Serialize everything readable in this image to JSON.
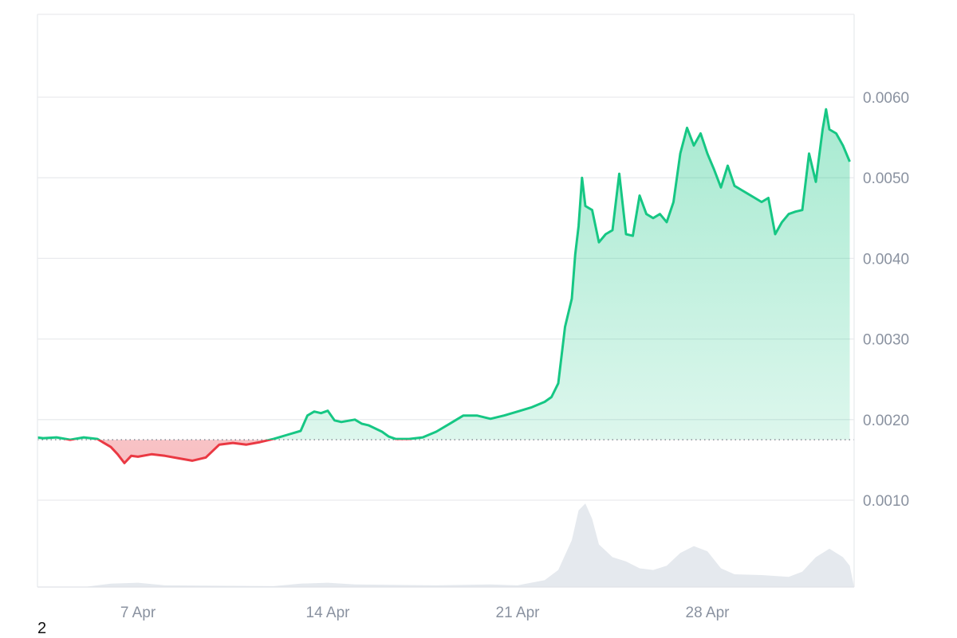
{
  "chart_data": {
    "type": "area",
    "ylim": [
      0,
      0.007
    ],
    "x_range": [
      "2024-04-02",
      "2024-05-05"
    ],
    "baseline": 0.00175,
    "grid": true,
    "colors": {
      "up_line": "#16c784",
      "down_line": "#ea3943",
      "up_fill": "#16c784",
      "down_fill": "#ea3943",
      "volume": "#e5e9ee",
      "grid": "#e9ebee",
      "baseline": "#7e8590"
    },
    "x_ticks": [
      {
        "label": "7 Apr",
        "x": "2024-04-07"
      },
      {
        "label": "14 Apr",
        "x": "2024-04-14"
      },
      {
        "label": "21 Apr",
        "x": "2024-04-21"
      },
      {
        "label": "28 Apr",
        "x": "2024-04-28"
      }
    ],
    "y_ticks": [
      {
        "label": "0.0010",
        "value": 0.001
      },
      {
        "label": "0.0020",
        "value": 0.002
      },
      {
        "label": "0.0030",
        "value": 0.003
      },
      {
        "label": "0.0040",
        "value": 0.004
      },
      {
        "label": "0.0050",
        "value": 0.005
      },
      {
        "label": "0.0060",
        "value": 0.006
      }
    ],
    "series": [
      {
        "points": [
          [
            "2024-04-02",
            0.00172
          ],
          [
            "2024-04-02 12:00",
            0.00178
          ],
          [
            "2024-04-03",
            0.00179
          ],
          [
            "2024-04-03 12:00",
            0.00177
          ],
          [
            "2024-04-04",
            0.00178
          ],
          [
            "2024-04-04 12:00",
            0.00175
          ],
          [
            "2024-04-05",
            0.00178
          ],
          [
            "2024-04-05 12:00",
            0.00176
          ],
          [
            "2024-04-06",
            0.00166
          ],
          [
            "2024-04-06 06:00",
            0.00157
          ],
          [
            "2024-04-06 12:00",
            0.00146
          ],
          [
            "2024-04-06 18:00",
            0.00155
          ],
          [
            "2024-04-07",
            0.00154
          ],
          [
            "2024-04-07 12:00",
            0.00157
          ],
          [
            "2024-04-08",
            0.00155
          ],
          [
            "2024-04-08 12:00",
            0.00152
          ],
          [
            "2024-04-09",
            0.00149
          ],
          [
            "2024-04-09 12:00",
            0.00153
          ],
          [
            "2024-04-10",
            0.00169
          ],
          [
            "2024-04-10 12:00",
            0.00171
          ],
          [
            "2024-04-11",
            0.00169
          ],
          [
            "2024-04-11 12:00",
            0.00172
          ],
          [
            "2024-04-12",
            0.00176
          ],
          [
            "2024-04-12 12:00",
            0.00181
          ],
          [
            "2024-04-13",
            0.00186
          ],
          [
            "2024-04-13 06:00",
            0.00205
          ],
          [
            "2024-04-13 12:00",
            0.0021
          ],
          [
            "2024-04-13 18:00",
            0.00208
          ],
          [
            "2024-04-14",
            0.00211
          ],
          [
            "2024-04-14 06:00",
            0.00199
          ],
          [
            "2024-04-14 12:00",
            0.00197
          ],
          [
            "2024-04-15",
            0.002
          ],
          [
            "2024-04-15 06:00",
            0.00195
          ],
          [
            "2024-04-15 12:00",
            0.00193
          ],
          [
            "2024-04-16",
            0.00185
          ],
          [
            "2024-04-16 06:00",
            0.00179
          ],
          [
            "2024-04-16 12:00",
            0.00176
          ],
          [
            "2024-04-17",
            0.00176
          ],
          [
            "2024-04-17 12:00",
            0.00178
          ],
          [
            "2024-04-18",
            0.00185
          ],
          [
            "2024-04-18 12:00",
            0.00195
          ],
          [
            "2024-04-19",
            0.00205
          ],
          [
            "2024-04-19 12:00",
            0.00205
          ],
          [
            "2024-04-20",
            0.00201
          ],
          [
            "2024-04-20 12:00",
            0.00205
          ],
          [
            "2024-04-21",
            0.0021
          ],
          [
            "2024-04-21 12:00",
            0.00215
          ],
          [
            "2024-04-22",
            0.00222
          ],
          [
            "2024-04-22 06:00",
            0.00228
          ],
          [
            "2024-04-22 12:00",
            0.00245
          ],
          [
            "2024-04-22 18:00",
            0.00315
          ],
          [
            "2024-04-23",
            0.0035
          ],
          [
            "2024-04-23 03:00",
            0.00405
          ],
          [
            "2024-04-23 06:00",
            0.0044
          ],
          [
            "2024-04-23 09:00",
            0.005
          ],
          [
            "2024-04-23 12:00",
            0.00465
          ],
          [
            "2024-04-23 18:00",
            0.0046
          ],
          [
            "2024-04-24",
            0.0042
          ],
          [
            "2024-04-24 06:00",
            0.0043
          ],
          [
            "2024-04-24 12:00",
            0.00435
          ],
          [
            "2024-04-24 18:00",
            0.00505
          ],
          [
            "2024-04-25",
            0.0043
          ],
          [
            "2024-04-25 06:00",
            0.00428
          ],
          [
            "2024-04-25 12:00",
            0.00478
          ],
          [
            "2024-04-25 18:00",
            0.00455
          ],
          [
            "2024-04-26",
            0.0045
          ],
          [
            "2024-04-26 06:00",
            0.00455
          ],
          [
            "2024-04-26 12:00",
            0.00445
          ],
          [
            "2024-04-26 18:00",
            0.0047
          ],
          [
            "2024-04-27",
            0.0053
          ],
          [
            "2024-04-27 06:00",
            0.00562
          ],
          [
            "2024-04-27 12:00",
            0.0054
          ],
          [
            "2024-04-27 18:00",
            0.00555
          ],
          [
            "2024-04-28",
            0.0053
          ],
          [
            "2024-04-28 06:00",
            0.0051
          ],
          [
            "2024-04-28 12:00",
            0.00488
          ],
          [
            "2024-04-28 18:00",
            0.00515
          ],
          [
            "2024-04-29",
            0.0049
          ],
          [
            "2024-04-29 06:00",
            0.00485
          ],
          [
            "2024-04-29 12:00",
            0.0048
          ],
          [
            "2024-04-29 18:00",
            0.00475
          ],
          [
            "2024-04-30",
            0.0047
          ],
          [
            "2024-04-30 06:00",
            0.00475
          ],
          [
            "2024-04-30 12:00",
            0.0043
          ],
          [
            "2024-04-30 18:00",
            0.00445
          ],
          [
            "2024-05-01",
            0.00455
          ],
          [
            "2024-05-01 06:00",
            0.00458
          ],
          [
            "2024-05-01 12:00",
            0.0046
          ],
          [
            "2024-05-01 18:00",
            0.0053
          ],
          [
            "2024-05-02",
            0.00495
          ],
          [
            "2024-05-02 06:00",
            0.0056
          ],
          [
            "2024-05-02 09:00",
            0.00585
          ],
          [
            "2024-05-02 12:00",
            0.0056
          ],
          [
            "2024-05-02 18:00",
            0.00555
          ],
          [
            "2024-05-03",
            0.0054
          ],
          [
            "2024-05-03 06:00",
            0.0052
          ]
        ]
      }
    ],
    "volume": {
      "max": 1.0,
      "points": [
        [
          "2024-04-02",
          0.0
        ],
        [
          "2024-04-05",
          0.0
        ],
        [
          "2024-04-06",
          0.04
        ],
        [
          "2024-04-07",
          0.05
        ],
        [
          "2024-04-08",
          0.02
        ],
        [
          "2024-04-12",
          0.01
        ],
        [
          "2024-04-13",
          0.04
        ],
        [
          "2024-04-14",
          0.05
        ],
        [
          "2024-04-15",
          0.03
        ],
        [
          "2024-04-18",
          0.02
        ],
        [
          "2024-04-20",
          0.03
        ],
        [
          "2024-04-21",
          0.02
        ],
        [
          "2024-04-22",
          0.08
        ],
        [
          "2024-04-22 12:00",
          0.2
        ],
        [
          "2024-04-23",
          0.55
        ],
        [
          "2024-04-23 06:00",
          0.9
        ],
        [
          "2024-04-23 12:00",
          0.98
        ],
        [
          "2024-04-23 18:00",
          0.8
        ],
        [
          "2024-04-24",
          0.5
        ],
        [
          "2024-04-24 12:00",
          0.35
        ],
        [
          "2024-04-25",
          0.3
        ],
        [
          "2024-04-25 12:00",
          0.22
        ],
        [
          "2024-04-26",
          0.2
        ],
        [
          "2024-04-26 12:00",
          0.25
        ],
        [
          "2024-04-27",
          0.4
        ],
        [
          "2024-04-27 12:00",
          0.48
        ],
        [
          "2024-04-28",
          0.42
        ],
        [
          "2024-04-28 12:00",
          0.22
        ],
        [
          "2024-04-29",
          0.15
        ],
        [
          "2024-04-30",
          0.14
        ],
        [
          "2024-05-01",
          0.12
        ],
        [
          "2024-05-01 12:00",
          0.18
        ],
        [
          "2024-05-02",
          0.35
        ],
        [
          "2024-05-02 12:00",
          0.45
        ],
        [
          "2024-05-03",
          0.35
        ],
        [
          "2024-05-03 06:00",
          0.25
        ]
      ]
    }
  },
  "footer": {
    "page_number": "2"
  }
}
